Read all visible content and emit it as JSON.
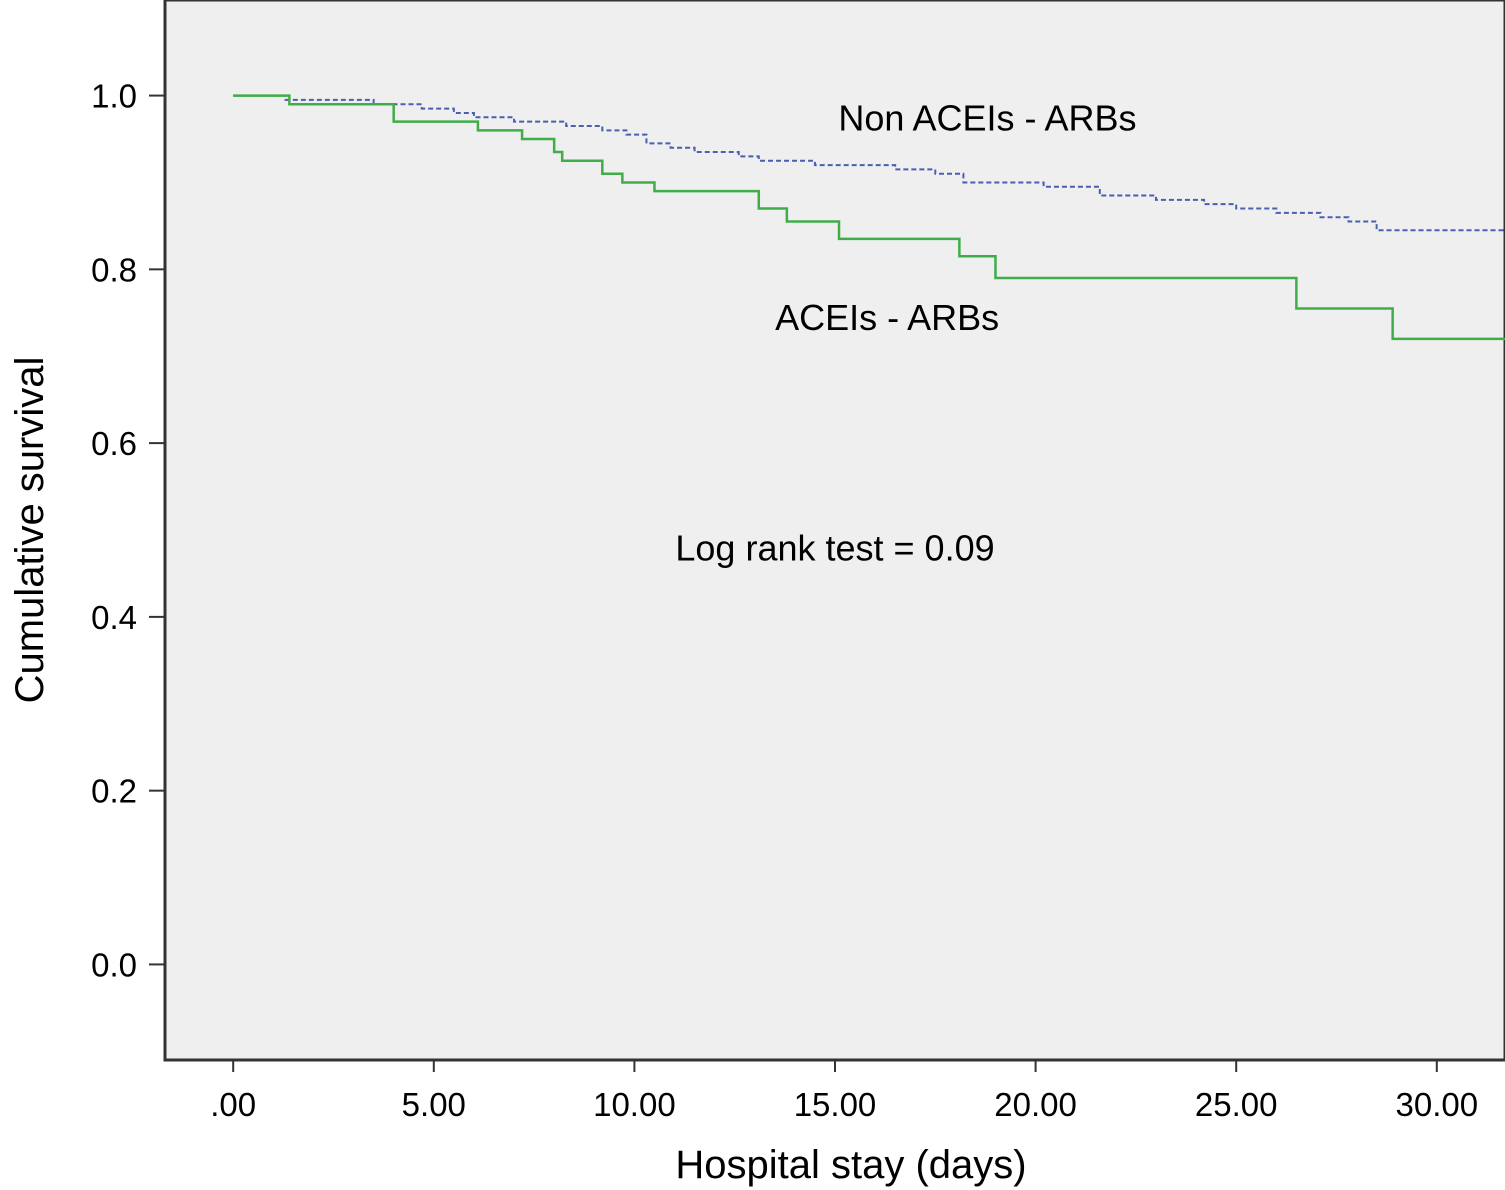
{
  "chart_data": {
    "type": "line",
    "title": "",
    "xlabel": "Hospital stay (days)",
    "ylabel": "Cumulative survival",
    "xlim": [
      -1.7,
      31.7
    ],
    "ylim": [
      -0.11,
      1.11
    ],
    "x_ticks": [
      0,
      5,
      10,
      15,
      20,
      25,
      30
    ],
    "x_tick_labels": [
      ".00",
      "5.00",
      "10.00",
      "15.00",
      "20.00",
      "25.00",
      "30.00"
    ],
    "y_ticks": [
      0,
      0.2,
      0.4,
      0.6,
      0.8,
      1.0
    ],
    "y_tick_labels": [
      "0.0",
      "0.2",
      "0.4",
      "0.6",
      "0.8",
      "1.0"
    ],
    "grid": false,
    "plot_background": "#efefef",
    "annotations": [
      {
        "text": "Non ACEIs - ARBs",
        "x": 18.8,
        "y": 0.96
      },
      {
        "text": "ACEIs - ARBs",
        "x": 16.3,
        "y": 0.73
      },
      {
        "text": "Log rank test = 0.09",
        "x": 15.0,
        "y": 0.465
      }
    ],
    "series": [
      {
        "name": "Non ACEIs - ARBs",
        "style": "dashed",
        "color": "#4a5fb0",
        "steps": [
          [
            0,
            1.0
          ],
          [
            1.3,
            0.995
          ],
          [
            3.5,
            0.99
          ],
          [
            4.7,
            0.985
          ],
          [
            5.5,
            0.98
          ],
          [
            6.0,
            0.975
          ],
          [
            7.0,
            0.97
          ],
          [
            8.3,
            0.965
          ],
          [
            9.2,
            0.96
          ],
          [
            9.8,
            0.955
          ],
          [
            10.3,
            0.945
          ],
          [
            10.9,
            0.94
          ],
          [
            11.5,
            0.935
          ],
          [
            12.6,
            0.93
          ],
          [
            13.1,
            0.925
          ],
          [
            14.5,
            0.92
          ],
          [
            16.5,
            0.915
          ],
          [
            17.5,
            0.91
          ],
          [
            18.2,
            0.9
          ],
          [
            20.2,
            0.895
          ],
          [
            21.6,
            0.885
          ],
          [
            23.0,
            0.88
          ],
          [
            24.2,
            0.875
          ],
          [
            25.0,
            0.87
          ],
          [
            26.0,
            0.865
          ],
          [
            27.1,
            0.86
          ],
          [
            27.8,
            0.855
          ],
          [
            28.5,
            0.845
          ],
          [
            31.7,
            0.845
          ]
        ]
      },
      {
        "name": "ACEIs - ARBs",
        "style": "solid",
        "color": "#3fae49",
        "steps": [
          [
            0,
            1.0
          ],
          [
            1.4,
            0.99
          ],
          [
            4.0,
            0.97
          ],
          [
            6.1,
            0.96
          ],
          [
            7.2,
            0.95
          ],
          [
            8.0,
            0.935
          ],
          [
            8.2,
            0.925
          ],
          [
            9.2,
            0.91
          ],
          [
            9.7,
            0.9
          ],
          [
            10.5,
            0.89
          ],
          [
            13.1,
            0.87
          ],
          [
            13.8,
            0.855
          ],
          [
            15.1,
            0.835
          ],
          [
            18.1,
            0.815
          ],
          [
            19.0,
            0.79
          ],
          [
            26.5,
            0.755
          ],
          [
            28.9,
            0.72
          ],
          [
            31.7,
            0.72
          ]
        ]
      }
    ]
  }
}
